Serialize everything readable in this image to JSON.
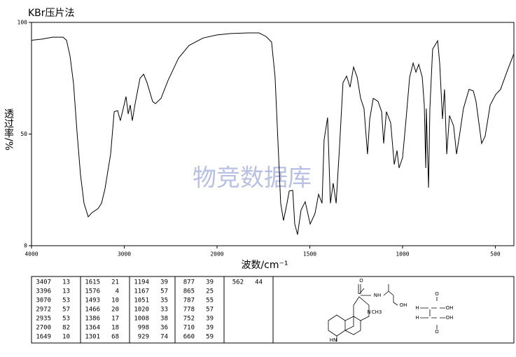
{
  "chart_data": {
    "type": "line",
    "title": "KBr压片法",
    "xlabel": "波数/cm⁻¹",
    "ylabel": "透过率/%",
    "watermark": "物竞数据库",
    "xlim": [
      4000,
      400
    ],
    "xticks": [
      4000,
      3000,
      2000,
      1500,
      1000,
      500
    ],
    "ylim": [
      0,
      100
    ],
    "yticks": [
      0,
      50,
      100
    ],
    "color": "#000000",
    "x": [
      4000,
      3887,
      3774,
      3660,
      3623,
      3585,
      3547,
      3509,
      3472,
      3434,
      3389,
      3351,
      3283,
      3245,
      3208,
      3147,
      3109,
      3072,
      3042,
      3011,
      2981,
      2958,
      2936,
      2913,
      2883,
      2830,
      2792,
      2755,
      2694,
      2664,
      2604,
      2528,
      2415,
      2302,
      2151,
      2000,
      1925,
      1830,
      1774,
      1736,
      1706,
      1687,
      1672,
      1657,
      1642,
      1623,
      1611,
      1592,
      1581,
      1566,
      1547,
      1525,
      1498,
      1472,
      1453,
      1434,
      1423,
      1404,
      1389,
      1374,
      1358,
      1340,
      1321,
      1302,
      1283,
      1264,
      1245,
      1226,
      1208,
      1189,
      1177,
      1158,
      1132,
      1113,
      1102,
      1087,
      1064,
      1045,
      1030,
      1019,
      1000,
      981,
      962,
      943,
      928,
      913,
      894,
      883,
      875,
      872,
      860,
      853,
      838,
      811,
      800,
      785,
      774,
      762,
      747,
      725,
      709,
      694,
      672,
      642,
      619,
      604,
      574,
      555,
      528,
      498,
      472,
      434,
      400
    ],
    "values": [
      92,
      92.5,
      93.4,
      93.4,
      92,
      85,
      72.7,
      50.5,
      31.7,
      19,
      12.9,
      14.7,
      16.6,
      19,
      25.4,
      41,
      60,
      60.5,
      56,
      61.4,
      66.8,
      59,
      63,
      56,
      63.6,
      75,
      76.8,
      73,
      64.6,
      63.6,
      66,
      74,
      84,
      89.7,
      93,
      94.4,
      95,
      95.3,
      95.3,
      93.7,
      91.2,
      75.5,
      47.3,
      19,
      11.3,
      19,
      24.5,
      24.8,
      9.7,
      5,
      16,
      19.7,
      9.7,
      14.4,
      23,
      19,
      47.3,
      57.4,
      19,
      28,
      19,
      44,
      73,
      76,
      71,
      80,
      75.5,
      66,
      61.4,
      41,
      56.7,
      66,
      64.6,
      60,
      45.8,
      60,
      55,
      36.4,
      42.6,
      34.8,
      39.5,
      56.7,
      75.5,
      81.8,
      77.7,
      81.2,
      75.5,
      63,
      34.8,
      61.4,
      26,
      61.4,
      88,
      91.8,
      81.8,
      56.7,
      70,
      41,
      58.3,
      53.6,
      41,
      49,
      61.4,
      70,
      69.3,
      64.6,
      45.8,
      49,
      63,
      67.7,
      70,
      78.7,
      86
    ]
  },
  "peak_table": [
    [
      [
        3407,
        13
      ],
      [
        3396,
        13
      ],
      [
        3070,
        53
      ],
      [
        2972,
        57
      ],
      [
        2935,
        53
      ],
      [
        2700,
        82
      ],
      [
        1649,
        10
      ]
    ],
    [
      [
        1615,
        21
      ],
      [
        1576,
        4
      ],
      [
        1493,
        10
      ],
      [
        1466,
        20
      ],
      [
        1386,
        17
      ],
      [
        1364,
        18
      ],
      [
        1301,
        68
      ]
    ],
    [
      [
        1194,
        39
      ],
      [
        1167,
        57
      ],
      [
        1051,
        35
      ],
      [
        1020,
        33
      ],
      [
        1008,
        38
      ],
      [
        998,
        36
      ],
      [
        929,
        74
      ]
    ],
    [
      [
        877,
        39
      ],
      [
        865,
        25
      ],
      [
        787,
        55
      ],
      [
        778,
        57
      ],
      [
        752,
        39
      ],
      [
        710,
        39
      ],
      [
        660,
        59
      ]
    ],
    [
      [
        562,
        44
      ]
    ]
  ],
  "structure_labels": [
    "O",
    "NH",
    "OH",
    "N",
    "CH3",
    "HN",
    "O",
    "OH",
    "O",
    "OH",
    "H",
    "H"
  ]
}
